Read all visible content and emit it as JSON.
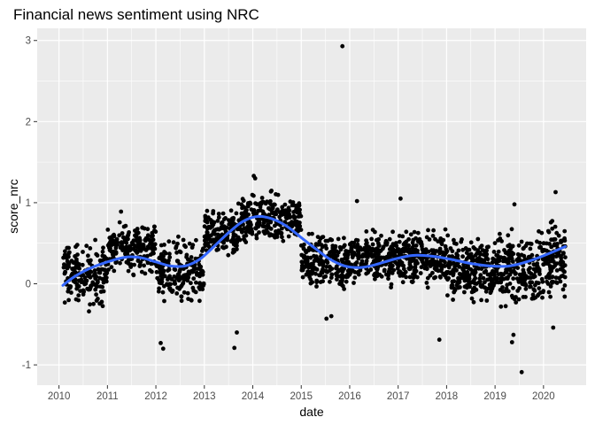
{
  "chart_data": {
    "type": "scatter",
    "title": "Financial news sentiment using NRC",
    "xlabel": "date",
    "ylabel": "score_nrc",
    "xlim": [
      2009.55,
      2020.88
    ],
    "ylim": [
      -1.25,
      3.15
    ],
    "x_ticks": [
      2010,
      2011,
      2012,
      2013,
      2014,
      2015,
      2016,
      2017,
      2018,
      2019,
      2020
    ],
    "y_ticks": [
      -1,
      0,
      1,
      2,
      3
    ],
    "grid": true,
    "legend": "none",
    "point_color": "#000000",
    "smooth_color": "#3366FF",
    "panel_color": "#EBEBEB",
    "smooth_trend": [
      {
        "x": 2010.08,
        "y": -0.02
      },
      {
        "x": 2010.3,
        "y": 0.08
      },
      {
        "x": 2010.6,
        "y": 0.18
      },
      {
        "x": 2011.0,
        "y": 0.27
      },
      {
        "x": 2011.4,
        "y": 0.33
      },
      {
        "x": 2011.7,
        "y": 0.32
      },
      {
        "x": 2012.0,
        "y": 0.27
      },
      {
        "x": 2012.3,
        "y": 0.22
      },
      {
        "x": 2012.6,
        "y": 0.22
      },
      {
        "x": 2012.9,
        "y": 0.3
      },
      {
        "x": 2013.2,
        "y": 0.46
      },
      {
        "x": 2013.5,
        "y": 0.63
      },
      {
        "x": 2013.8,
        "y": 0.77
      },
      {
        "x": 2014.1,
        "y": 0.83
      },
      {
        "x": 2014.4,
        "y": 0.8
      },
      {
        "x": 2014.7,
        "y": 0.71
      },
      {
        "x": 2015.0,
        "y": 0.57
      },
      {
        "x": 2015.3,
        "y": 0.43
      },
      {
        "x": 2015.6,
        "y": 0.3
      },
      {
        "x": 2015.9,
        "y": 0.22
      },
      {
        "x": 2016.2,
        "y": 0.2
      },
      {
        "x": 2016.5,
        "y": 0.23
      },
      {
        "x": 2016.9,
        "y": 0.3
      },
      {
        "x": 2017.3,
        "y": 0.35
      },
      {
        "x": 2017.7,
        "y": 0.34
      },
      {
        "x": 2018.1,
        "y": 0.3
      },
      {
        "x": 2018.5,
        "y": 0.25
      },
      {
        "x": 2018.9,
        "y": 0.22
      },
      {
        "x": 2019.3,
        "y": 0.22
      },
      {
        "x": 2019.7,
        "y": 0.28
      },
      {
        "x": 2020.1,
        "y": 0.37
      },
      {
        "x": 2020.45,
        "y": 0.46
      }
    ],
    "scatter_bands": [
      {
        "x0": 2010.08,
        "x1": 2010.5,
        "lo": -0.35,
        "hi": 0.6,
        "n": 90
      },
      {
        "x0": 2010.5,
        "x1": 2011.0,
        "lo": -0.45,
        "hi": 0.65,
        "n": 100
      },
      {
        "x0": 2011.0,
        "x1": 2012.0,
        "lo": 0.05,
        "hi": 0.85,
        "n": 200
      },
      {
        "x0": 2012.0,
        "x1": 2013.0,
        "lo": -0.35,
        "hi": 0.65,
        "n": 190
      },
      {
        "x0": 2013.0,
        "x1": 2013.7,
        "lo": 0.2,
        "hi": 1.0,
        "n": 150
      },
      {
        "x0": 2013.7,
        "x1": 2015.0,
        "lo": 0.4,
        "hi": 1.2,
        "n": 260
      },
      {
        "x0": 2015.0,
        "x1": 2016.0,
        "lo": -0.2,
        "hi": 0.75,
        "n": 220
      },
      {
        "x0": 2016.0,
        "x1": 2017.0,
        "lo": -0.1,
        "hi": 0.75,
        "n": 230
      },
      {
        "x0": 2017.0,
        "x1": 2018.0,
        "lo": -0.1,
        "hi": 0.75,
        "n": 230
      },
      {
        "x0": 2018.0,
        "x1": 2019.0,
        "lo": -0.35,
        "hi": 0.7,
        "n": 230
      },
      {
        "x0": 2019.0,
        "x1": 2020.0,
        "lo": -0.4,
        "hi": 0.75,
        "n": 230
      },
      {
        "x0": 2020.0,
        "x1": 2020.45,
        "lo": -0.35,
        "hi": 0.95,
        "n": 120
      }
    ],
    "outliers": [
      {
        "x": 2015.85,
        "y": 2.93
      },
      {
        "x": 2019.55,
        "y": -1.09
      },
      {
        "x": 2012.15,
        "y": -0.8
      },
      {
        "x": 2012.1,
        "y": -0.73
      },
      {
        "x": 2013.62,
        "y": -0.79
      },
      {
        "x": 2013.67,
        "y": -0.6
      },
      {
        "x": 2017.85,
        "y": -0.69
      },
      {
        "x": 2019.35,
        "y": -0.72
      },
      {
        "x": 2019.38,
        "y": -0.63
      },
      {
        "x": 2020.2,
        "y": -0.54
      },
      {
        "x": 2015.52,
        "y": -0.43
      },
      {
        "x": 2015.62,
        "y": -0.4
      },
      {
        "x": 2014.02,
        "y": 1.33
      },
      {
        "x": 2014.05,
        "y": 1.3
      },
      {
        "x": 2020.25,
        "y": 1.13
      },
      {
        "x": 2017.05,
        "y": 1.05
      },
      {
        "x": 2016.15,
        "y": 1.02
      },
      {
        "x": 2019.4,
        "y": 0.98
      },
      {
        "x": 2011.28,
        "y": 0.89
      }
    ]
  }
}
